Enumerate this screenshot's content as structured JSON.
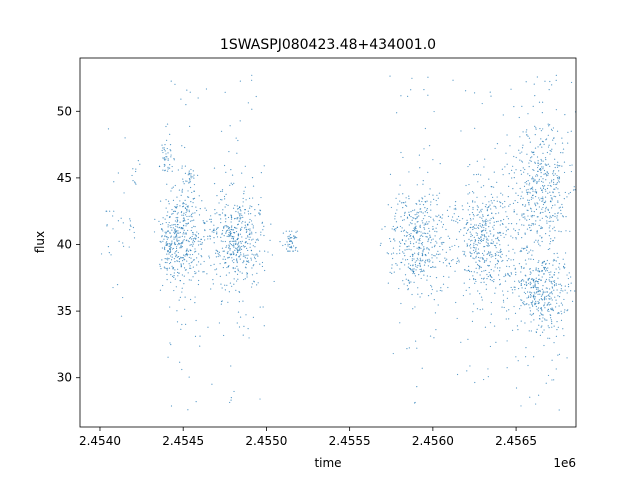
{
  "chart_data": {
    "type": "scatter",
    "title": "1SWASPJ080423.48+434001.0",
    "xlabel": "time",
    "ylabel": "flux",
    "x_offset_text": "1e6",
    "xlim": [
      2.45388,
      2.45686
    ],
    "ylim": [
      26.3,
      54.0
    ],
    "x_ticks": [
      2.454,
      2.4545,
      2.455,
      2.4555,
      2.456,
      2.4565
    ],
    "x_tick_labels": [
      "2.4540",
      "2.4545",
      "2.4550",
      "2.4555",
      "2.4560",
      "2.4565"
    ],
    "y_ticks": [
      30,
      35,
      40,
      45,
      50
    ],
    "y_tick_labels": [
      "30",
      "35",
      "40",
      "45",
      "50"
    ],
    "grid": false,
    "legend": "none",
    "marker": "point",
    "color": "#1f77b4",
    "clusters": [
      {
        "x": 2.45407,
        "x_spread": 4e-05,
        "y": 41.0,
        "y_spread": 1.4,
        "y_min": 39.0,
        "y_max": 42.5,
        "n": 12
      },
      {
        "x": 2.45412,
        "x_spread": 4e-05,
        "y": 41.0,
        "y_spread": 3.5,
        "y_min": 31.5,
        "y_max": 49.3,
        "n": 14
      },
      {
        "x": 2.45419,
        "x_spread": 3e-05,
        "y": 40.5,
        "y_spread": 1.2,
        "y_min": 39.0,
        "y_max": 43.0,
        "n": 10
      },
      {
        "x": 2.45419,
        "x_spread": 2e-05,
        "y": 45.5,
        "y_spread": 0.7,
        "y_min": 44.5,
        "y_max": 46.5,
        "n": 10
      },
      {
        "x": 2.4544,
        "x_spread": 2e-05,
        "y": 46.5,
        "y_spread": 0.5,
        "y_min": 45.5,
        "y_max": 47.5,
        "n": 40
      },
      {
        "x": 2.45442,
        "x_spread": 4e-05,
        "y": 40.3,
        "y_spread": 1.5,
        "y_min": 31.5,
        "y_max": 50.3,
        "n": 160
      },
      {
        "x": 2.45451,
        "x_spread": 6e-05,
        "y": 40.3,
        "y_spread": 2.0,
        "y_min": 27.5,
        "y_max": 52.8,
        "n": 340
      },
      {
        "x": 2.45455,
        "x_spread": 2e-05,
        "y": 45.0,
        "y_spread": 0.6,
        "y_min": 44.0,
        "y_max": 46.0,
        "n": 25
      },
      {
        "x": 2.45482,
        "x_spread": 9e-05,
        "y": 40.3,
        "y_spread": 1.8,
        "y_min": 27.8,
        "y_max": 53.0,
        "n": 520
      },
      {
        "x": 2.45515,
        "x_spread": 2e-05,
        "y": 40.2,
        "y_spread": 0.5,
        "y_min": 39.5,
        "y_max": 41.0,
        "n": 50
      },
      {
        "x": 2.45591,
        "x_spread": 9e-05,
        "y": 40.3,
        "y_spread": 2.0,
        "y_min": 27.5,
        "y_max": 53.3,
        "n": 480
      },
      {
        "x": 2.45631,
        "x_spread": 9e-05,
        "y": 40.3,
        "y_spread": 2.2,
        "y_min": 27.5,
        "y_max": 53.0,
        "n": 520
      },
      {
        "x": 2.45665,
        "x_spread": 9e-05,
        "y": 44.5,
        "y_spread": 2.2,
        "y_min": 27.5,
        "y_max": 53.0,
        "n": 450
      },
      {
        "x": 2.45665,
        "x_spread": 9e-05,
        "y": 36.5,
        "y_spread": 1.6,
        "y_min": 27.5,
        "y_max": 53.0,
        "n": 450
      }
    ]
  }
}
